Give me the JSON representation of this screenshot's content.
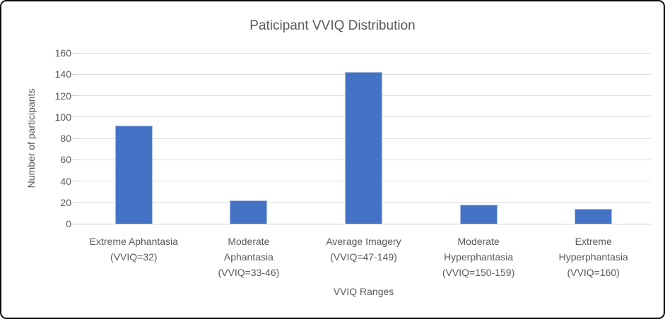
{
  "chart_data": {
    "type": "bar",
    "title": "Paticipant VVIQ Distribution",
    "xlabel": "VVIQ Ranges",
    "ylabel": "Number of participants",
    "categories": [
      "Extreme Aphantasia (VVIQ=32)",
      "Moderate Aphantasia (VVIQ=33-46)",
      "Average Imagery (VVIQ=47-149)",
      "Moderate Hyperphantasia (VVIQ=150-159)",
      "Extreme Hyperphantasia (VVIQ=160)"
    ],
    "category_label_lines": [
      [
        "Extreme Aphantasia",
        "(VVIQ=32)"
      ],
      [
        "Moderate",
        "Aphantasia",
        "(VVIQ=33-46)"
      ],
      [
        "Average Imagery",
        "(VVIQ=47-149)"
      ],
      [
        "Moderate",
        "Hyperphantasia",
        "(VVIQ=150-159)"
      ],
      [
        "Extreme",
        "Hyperphantasia",
        "(VVIQ=160)"
      ]
    ],
    "values": [
      92,
      22,
      142,
      18,
      14
    ],
    "yticks": [
      0,
      20,
      40,
      60,
      80,
      100,
      120,
      140,
      160
    ],
    "ylim": [
      0,
      160
    ],
    "grid": true,
    "legend": false
  },
  "colors": {
    "bar": "#4472C4",
    "text": "#595959",
    "gridline": "#DEDEDE",
    "frame_border": "#0A0A0A",
    "background": "#FFFFFF"
  }
}
